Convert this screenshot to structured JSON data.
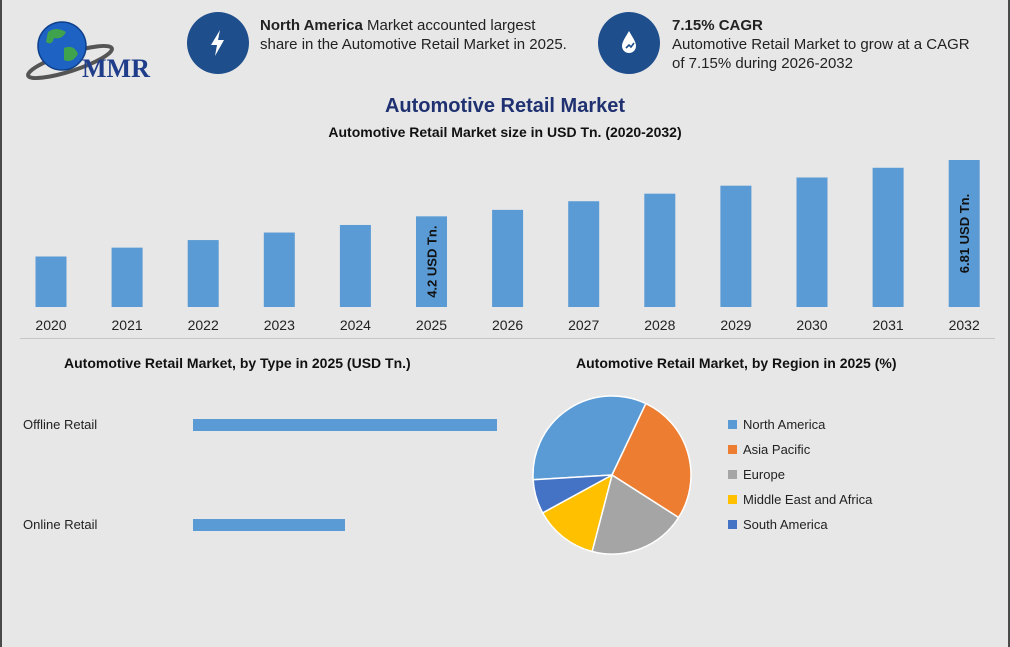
{
  "logo": {
    "text": "MMR"
  },
  "callouts": [
    {
      "icon": "bolt-icon",
      "bold": "North America",
      "text": " Market accounted largest",
      "line2": "share in the Automotive Retail Market in 2025."
    },
    {
      "icon": "growth-drop-icon",
      "bold": "7.15% CAGR",
      "text": "Automotive Retail Market to grow at a CAGR",
      "line2": "of 7.15% during 2026-2032"
    }
  ],
  "page_title": "Automotive Retail Market",
  "colors": {
    "bar": "#5b9bd5",
    "icon_circle": "#1f4e8c",
    "title": "#1f3170",
    "north_america": "#5b9bd5",
    "asia_pacific": "#ed7d31",
    "europe": "#a5a5a5",
    "mea": "#ffc000",
    "south_america": "#4472c4"
  },
  "chart_data": [
    {
      "type": "bar",
      "title": "Automotive Retail Market size in USD Tn. (2020-2032)",
      "categories": [
        "2020",
        "2021",
        "2022",
        "2023",
        "2024",
        "2025",
        "2026",
        "2027",
        "2028",
        "2029",
        "2030",
        "2031",
        "2032"
      ],
      "values": [
        2.34,
        2.75,
        3.1,
        3.45,
        3.8,
        4.2,
        4.5,
        4.9,
        5.25,
        5.62,
        6.0,
        6.45,
        6.81
      ],
      "data_labels": {
        "5": "4.2 USD Tn.",
        "12": "6.81 USD Tn."
      },
      "ylim": [
        0,
        6.81
      ],
      "grid": false,
      "legend": "none"
    },
    {
      "type": "bar",
      "orientation": "horizontal",
      "title": "Automotive Retail Market, by Type in 2025 (USD Tn.)",
      "categories": [
        "Offline Retail",
        "Online Retail"
      ],
      "values": [
        2.8,
        1.4
      ],
      "xlim": [
        0,
        2.8
      ],
      "grid": false
    },
    {
      "type": "pie",
      "title": "Automotive Retail Market, by Region in 2025 (%)",
      "categories": [
        "North America",
        "Asia Pacific",
        "Europe",
        "Middle East and Africa",
        "South America"
      ],
      "values": [
        33,
        27,
        20,
        13,
        7
      ],
      "legend": "right"
    }
  ]
}
